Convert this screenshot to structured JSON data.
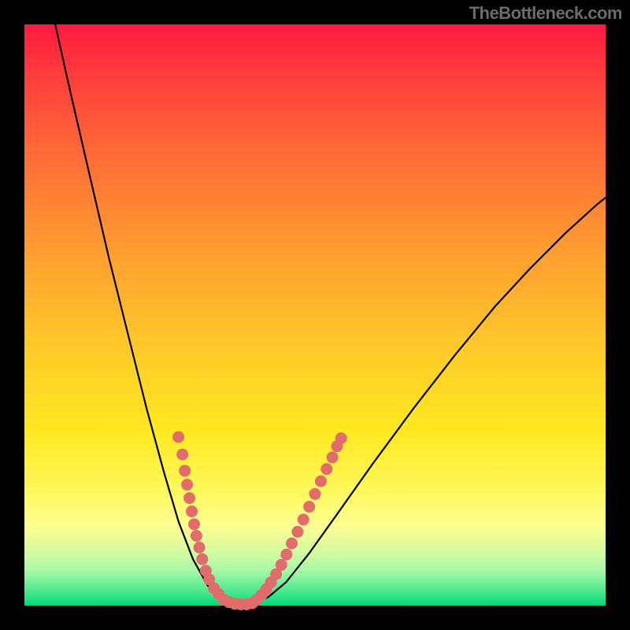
{
  "watermark": {
    "text": "TheBottleneck.com",
    "color": "#6b6b6b",
    "fontsize": 22
  },
  "canvas": {
    "outer_size": [
      800,
      800
    ],
    "outer_bg": "#000000",
    "plot_inset": 31,
    "plot_size": [
      738,
      738
    ],
    "gradient_stops": [
      {
        "pct": 0,
        "color": "#ff1a40"
      },
      {
        "pct": 8,
        "color": "#ff3a3c"
      },
      {
        "pct": 22,
        "color": "#ff6a38"
      },
      {
        "pct": 40,
        "color": "#ffa030"
      },
      {
        "pct": 55,
        "color": "#ffc82a"
      },
      {
        "pct": 70,
        "color": "#ffe820"
      },
      {
        "pct": 80,
        "color": "#fff85a"
      },
      {
        "pct": 86,
        "color": "#fdfe8e"
      },
      {
        "pct": 90,
        "color": "#dcfc9e"
      },
      {
        "pct": 94,
        "color": "#a8f8a8"
      },
      {
        "pct": 98,
        "color": "#3fe68a"
      },
      {
        "pct": 100,
        "color": "#00d878"
      }
    ]
  },
  "chart": {
    "type": "line",
    "xlim": [
      0,
      1
    ],
    "ylim": [
      0,
      1
    ],
    "curve_color": "#000000",
    "curve_width": 2.2,
    "left_branch_points": [
      [
        0.053,
        0.0
      ],
      [
        0.08,
        0.12
      ],
      [
        0.11,
        0.25
      ],
      [
        0.145,
        0.4
      ],
      [
        0.18,
        0.54
      ],
      [
        0.21,
        0.66
      ],
      [
        0.24,
        0.77
      ],
      [
        0.265,
        0.855
      ],
      [
        0.29,
        0.92
      ],
      [
        0.315,
        0.965
      ],
      [
        0.335,
        0.99
      ]
    ],
    "bottom_points": [
      [
        0.335,
        0.99
      ],
      [
        0.36,
        0.998
      ],
      [
        0.395,
        0.998
      ]
    ],
    "right_branch_points": [
      [
        0.395,
        0.998
      ],
      [
        0.42,
        0.985
      ],
      [
        0.45,
        0.96
      ],
      [
        0.49,
        0.91
      ],
      [
        0.54,
        0.84
      ],
      [
        0.6,
        0.755
      ],
      [
        0.67,
        0.66
      ],
      [
        0.74,
        0.57
      ],
      [
        0.81,
        0.485
      ],
      [
        0.87,
        0.42
      ],
      [
        0.93,
        0.36
      ],
      [
        0.985,
        0.31
      ],
      [
        1.0,
        0.298
      ]
    ],
    "markers": {
      "color": "#e26b6b",
      "radius": 7.5,
      "left_cluster": [
        [
          0.265,
          0.71
        ],
        [
          0.272,
          0.74
        ],
        [
          0.276,
          0.768
        ],
        [
          0.28,
          0.792
        ],
        [
          0.284,
          0.815
        ],
        [
          0.288,
          0.838
        ],
        [
          0.292,
          0.86
        ],
        [
          0.296,
          0.88
        ],
        [
          0.301,
          0.9
        ],
        [
          0.306,
          0.92
        ],
        [
          0.312,
          0.94
        ],
        [
          0.318,
          0.955
        ],
        [
          0.326,
          0.97
        ],
        [
          0.334,
          0.98
        ]
      ],
      "bottom_cluster": [
        [
          0.343,
          0.99
        ],
        [
          0.352,
          0.994
        ],
        [
          0.362,
          0.997
        ],
        [
          0.372,
          0.998
        ],
        [
          0.382,
          0.998
        ],
        [
          0.392,
          0.996
        ]
      ],
      "right_cluster": [
        [
          0.4,
          0.99
        ],
        [
          0.408,
          0.982
        ],
        [
          0.416,
          0.972
        ],
        [
          0.424,
          0.96
        ],
        [
          0.433,
          0.946
        ],
        [
          0.442,
          0.93
        ],
        [
          0.451,
          0.912
        ],
        [
          0.46,
          0.893
        ],
        [
          0.47,
          0.873
        ],
        [
          0.48,
          0.852
        ],
        [
          0.49,
          0.83
        ],
        [
          0.5,
          0.808
        ],
        [
          0.51,
          0.786
        ],
        [
          0.52,
          0.765
        ],
        [
          0.53,
          0.745
        ],
        [
          0.538,
          0.726
        ],
        [
          0.545,
          0.712
        ]
      ]
    }
  }
}
